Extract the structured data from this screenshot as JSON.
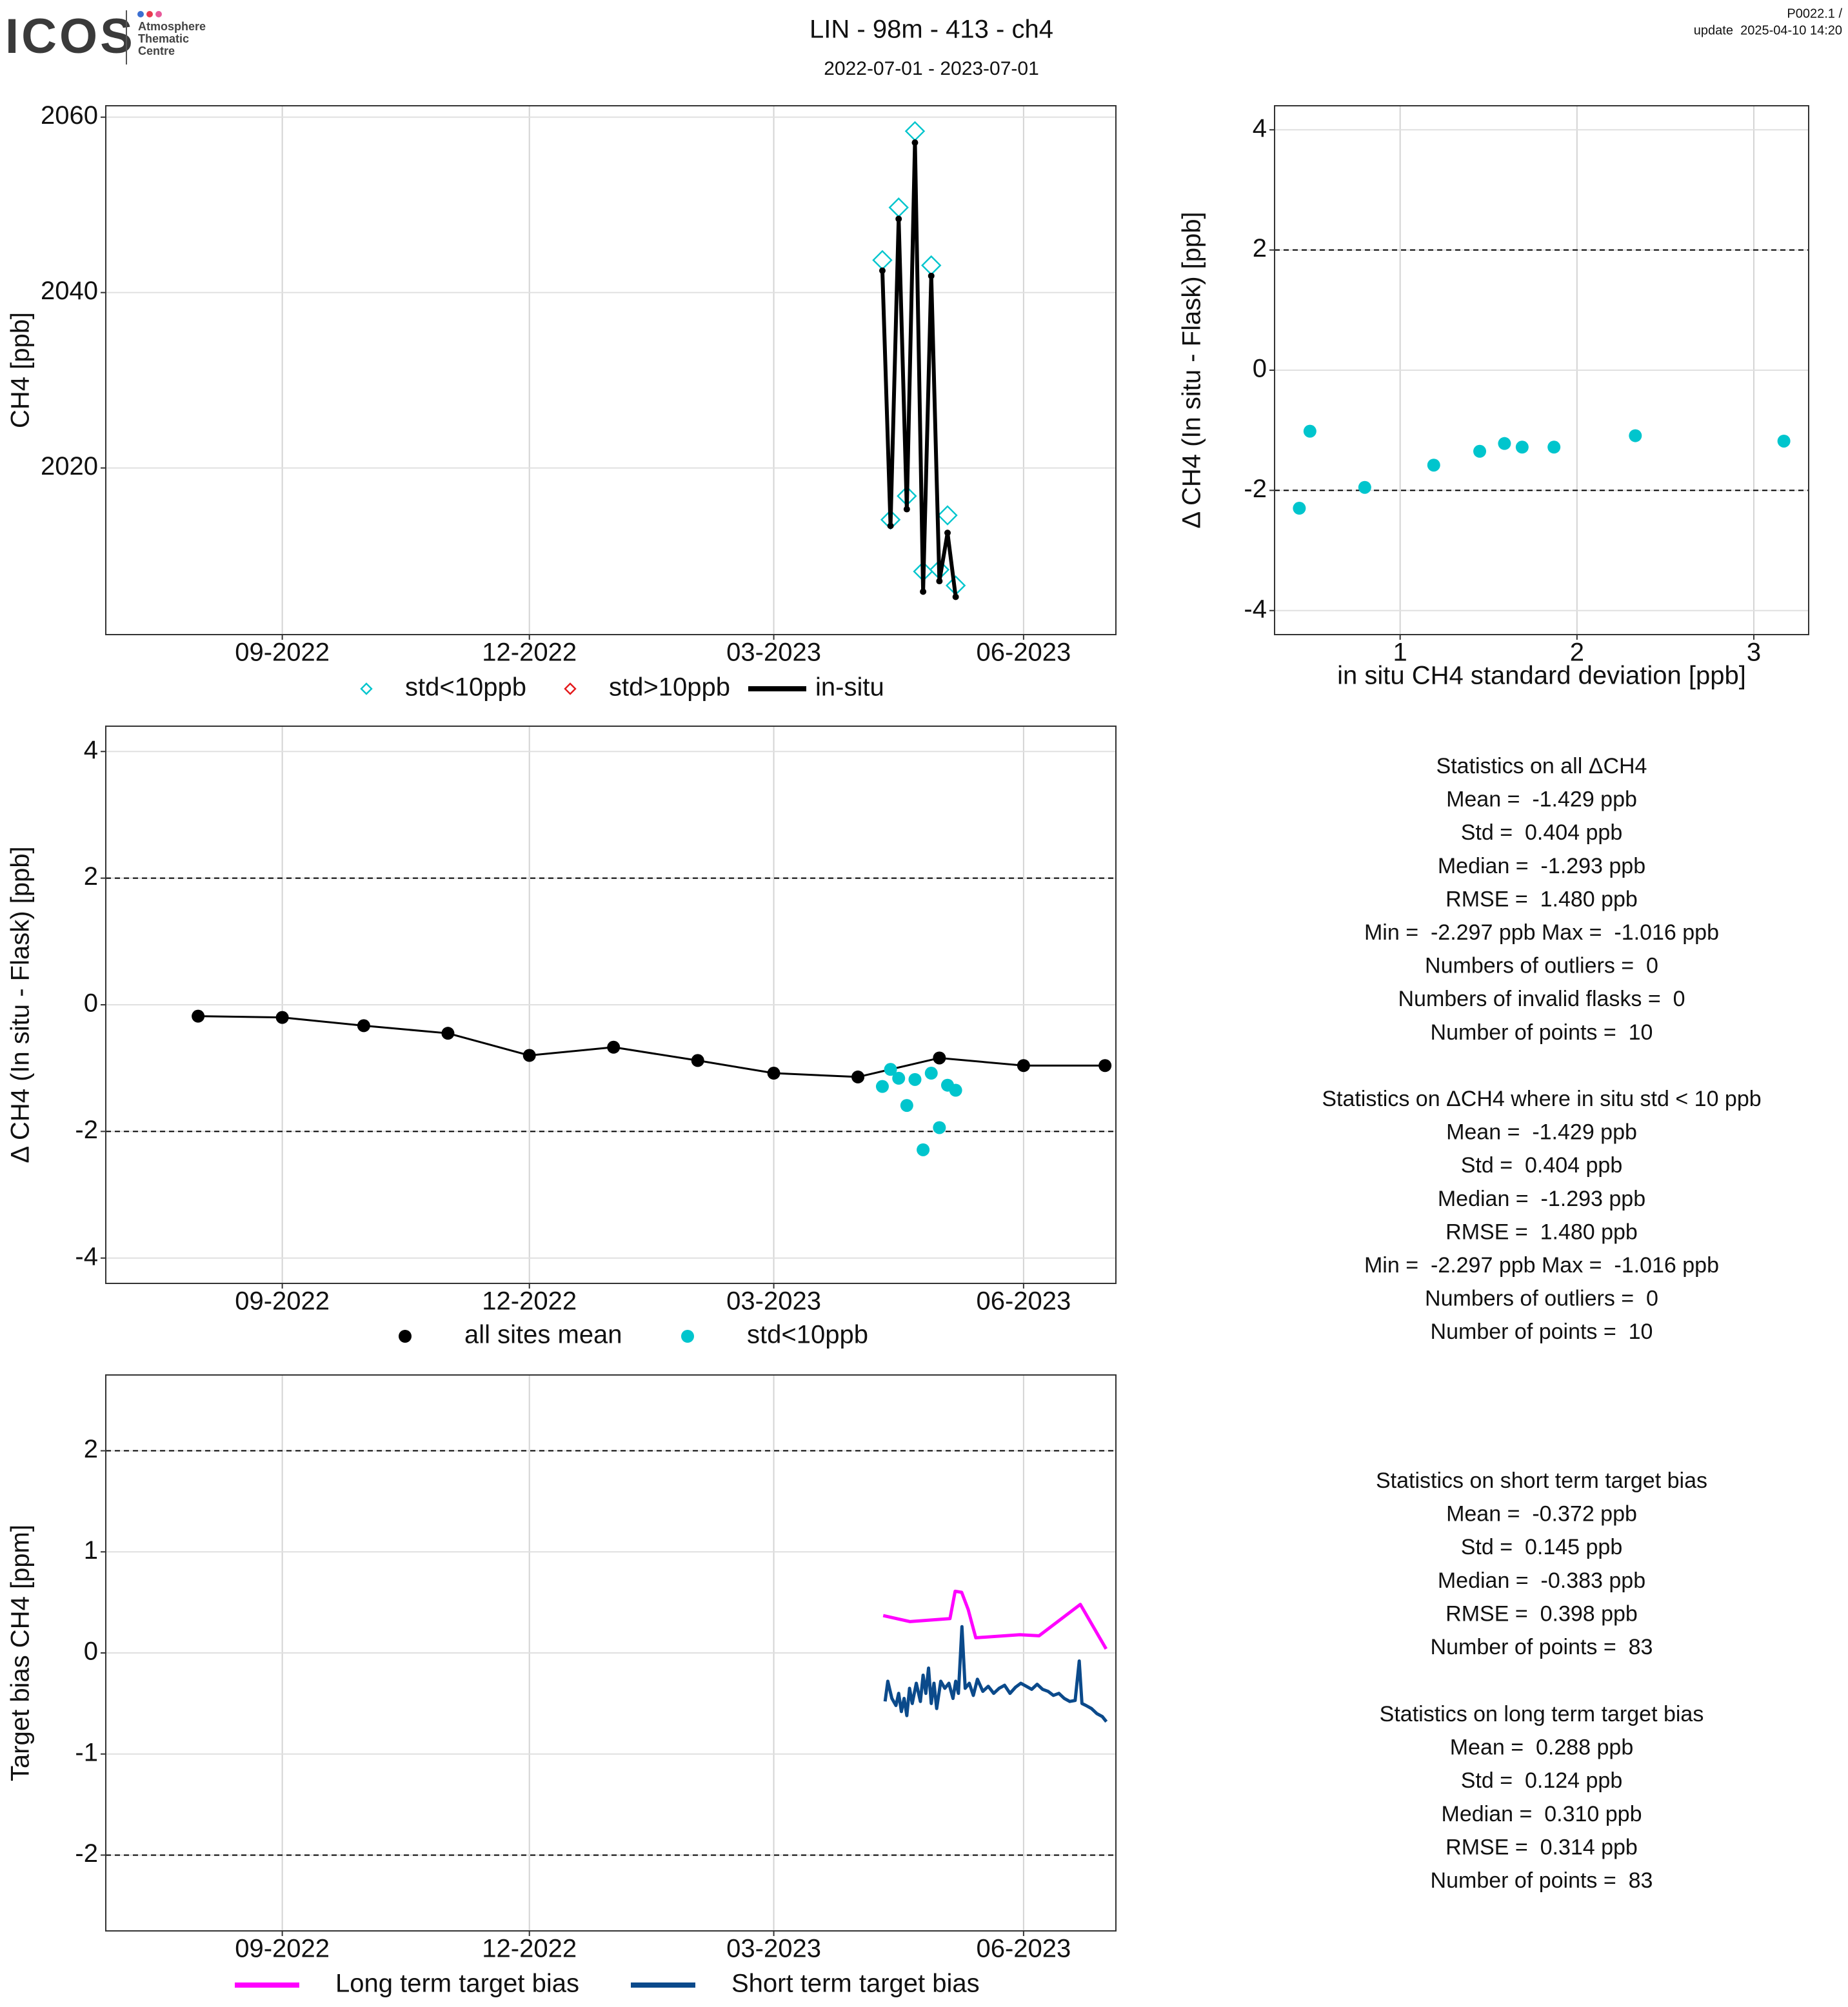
{
  "header": {
    "logo": "ICOS",
    "logo_subtitle": [
      "Atmosphere",
      "Thematic",
      "Centre"
    ],
    "title": "LIN - 98m - 413 - ch4",
    "subtitle": "2022-07-01 - 2023-07-01",
    "version": "P0022.1 /",
    "update": "update  2025-04-10 14:20"
  },
  "chart_data": [
    {
      "type": "line",
      "y_label": "CH4 [ppb]",
      "xlim": [
        -3,
        369
      ],
      "xticks": [
        {
          "value": 62,
          "label": "09-2022"
        },
        {
          "value": 153,
          "label": "12-2022"
        },
        {
          "value": 243,
          "label": "03-2023"
        },
        {
          "value": 335,
          "label": "06-2023"
        }
      ],
      "ylim": [
        2001,
        2061.3
      ],
      "yticks": [
        2020,
        2040,
        2060
      ],
      "grid": true,
      "series": [
        {
          "name": "std<10ppb",
          "color": "#00c5cd",
          "style": "diamond",
          "x": [
            283,
            286,
            289,
            292,
            295,
            298,
            301,
            304,
            307,
            310
          ],
          "values": [
            2043.7,
            2014.1,
            2049.7,
            2016.8,
            2058.4,
            2008.2,
            2043.1,
            2008.4,
            2014.6,
            2006.6
          ]
        },
        {
          "name": "std>10ppb",
          "color": "#e41a1c",
          "style": "diamond",
          "x": [],
          "values": []
        },
        {
          "name": "in-situ",
          "color": "#000000",
          "style": "line+point",
          "x": [
            283,
            286,
            289,
            292,
            295,
            298,
            301,
            304,
            307,
            310
          ],
          "values": [
            2042.5,
            2013.4,
            2048.4,
            2015.3,
            2057.1,
            2005.9,
            2041.9,
            2007.1,
            2012.6,
            2005.3
          ]
        }
      ]
    },
    {
      "type": "scatter",
      "x_label": "in situ CH4 standard deviation [ppb]",
      "y_label": "Δ CH4 (In situ - Flask) [ppb]",
      "xlim": [
        0.29,
        3.31
      ],
      "xticks": [
        1,
        2,
        3
      ],
      "ylim": [
        -4.4,
        4.4
      ],
      "yticks": [
        -4,
        -2,
        0,
        2,
        4
      ],
      "grid": true,
      "reference_lines": [
        2,
        -2
      ],
      "series": [
        {
          "color": "#00c5cd",
          "style": "point",
          "x": [
            0.43,
            0.49,
            0.8,
            1.19,
            1.45,
            1.59,
            1.69,
            1.87,
            2.33,
            3.17
          ],
          "values": [
            -2.297,
            -1.016,
            -1.95,
            -1.58,
            -1.35,
            -1.22,
            -1.28,
            -1.28,
            -1.09,
            -1.18
          ]
        }
      ]
    },
    {
      "type": "line",
      "y_label": "Δ CH4 (In situ - Flask) [ppb]",
      "xlim": [
        -3,
        369
      ],
      "xticks": [
        {
          "value": 62,
          "label": "09-2022"
        },
        {
          "value": 153,
          "label": "12-2022"
        },
        {
          "value": 243,
          "label": "03-2023"
        },
        {
          "value": 335,
          "label": "06-2023"
        }
      ],
      "ylim": [
        -4.4,
        4.4
      ],
      "yticks": [
        -4,
        -2,
        0,
        2,
        4
      ],
      "grid": true,
      "reference_lines": [
        2,
        -2
      ],
      "series": [
        {
          "name": "all sites mean",
          "color": "#000000",
          "style": "line+point",
          "x": [
            31,
            62,
            92,
            123,
            153,
            184,
            215,
            243,
            274,
            304,
            335,
            365
          ],
          "values": [
            -0.18,
            -0.2,
            -0.33,
            -0.45,
            -0.8,
            -0.67,
            -0.88,
            -1.08,
            -1.14,
            -0.84,
            -0.96,
            -0.96
          ]
        },
        {
          "name": "std<10ppb",
          "color": "#00c5cd",
          "style": "point",
          "x": [
            283,
            286,
            289,
            292,
            295,
            298,
            301,
            304,
            307,
            310
          ],
          "values": [
            -1.29,
            -1.02,
            -1.16,
            -1.59,
            -1.18,
            -2.29,
            -1.08,
            -1.94,
            -1.27,
            -1.35
          ]
        }
      ]
    },
    {
      "type": "line",
      "y_label": "Target bias CH4 [ppm]",
      "xlim": [
        -3,
        369
      ],
      "xticks": [
        {
          "value": 62,
          "label": "09-2022"
        },
        {
          "value": 153,
          "label": "12-2022"
        },
        {
          "value": 243,
          "label": "03-2023"
        },
        {
          "value": 335,
          "label": "06-2023"
        }
      ],
      "ylim": [
        -2.75,
        2.75
      ],
      "yticks": [
        -2,
        -1,
        0,
        1,
        2
      ],
      "grid": true,
      "reference_lines": [
        2,
        -2
      ],
      "series": [
        {
          "name": "Long term target bias",
          "color": "#ff00ff",
          "style": "line",
          "x": [
            283.3,
            293.2,
            307.9,
            309.8,
            312.2,
            314.6,
            317.4,
            333.6,
            340.7,
            355.9,
            365.4
          ],
          "values": [
            0.37,
            0.31,
            0.34,
            0.61,
            0.6,
            0.43,
            0.15,
            0.18,
            0.17,
            0.48,
            0.04
          ]
        },
        {
          "name": "Short term target bias",
          "color": "#0b4a8b",
          "style": "line",
          "x": [
            284,
            285,
            286.5,
            288,
            289,
            290,
            291,
            292,
            293,
            294,
            295.5,
            297,
            298,
            299,
            300,
            301,
            302,
            303,
            304.5,
            306,
            307.5,
            309,
            310,
            311,
            312.3,
            313.5,
            315,
            316.5,
            318,
            320,
            322,
            324,
            326,
            328,
            330,
            332,
            334,
            336,
            338,
            340,
            342,
            344,
            346,
            348,
            350,
            352,
            354,
            355.5,
            356.5,
            358,
            360,
            362,
            364,
            365.5
          ],
          "values": [
            -0.48,
            -0.28,
            -0.45,
            -0.52,
            -0.4,
            -0.58,
            -0.45,
            -0.62,
            -0.35,
            -0.5,
            -0.3,
            -0.48,
            -0.22,
            -0.4,
            -0.15,
            -0.5,
            -0.3,
            -0.55,
            -0.28,
            -0.35,
            -0.3,
            -0.45,
            -0.28,
            -0.4,
            0.26,
            -0.35,
            -0.3,
            -0.42,
            -0.26,
            -0.38,
            -0.33,
            -0.4,
            -0.35,
            -0.32,
            -0.4,
            -0.34,
            -0.3,
            -0.33,
            -0.36,
            -0.31,
            -0.36,
            -0.38,
            -0.42,
            -0.4,
            -0.45,
            -0.48,
            -0.47,
            -0.08,
            -0.5,
            -0.52,
            -0.55,
            -0.6,
            -0.63,
            -0.68
          ]
        }
      ]
    }
  ],
  "statistics": [
    {
      "lines": [
        "Statistics on all ΔCH4",
        "Mean =  -1.429 ppb",
        "Std =  0.404 ppb",
        "Median =  -1.293 ppb",
        "RMSE =  1.480 ppb",
        "Min =  -2.297 ppb Max =  -1.016 ppb",
        "Numbers of outliers =  0",
        "Numbers of invalid flasks =  0",
        "Number of points =  10"
      ]
    },
    {
      "lines": [
        "Statistics on ΔCH4 where in situ std < 10 ppb",
        "Mean =  -1.429 ppb",
        "Std =  0.404 ppb",
        "Median =  -1.293 ppb",
        "RMSE =  1.480 ppb",
        "Min =  -2.297 ppb Max =  -1.016 ppb",
        "Numbers of outliers =  0",
        "Number of points =  10"
      ]
    },
    {
      "lines": [
        "Statistics on short term target bias",
        "Mean =  -0.372 ppb",
        "Std =  0.145 ppb",
        "Median =  -0.383 ppb",
        "RMSE =  0.398 ppb",
        "Number of points =  83"
      ]
    },
    {
      "lines": [
        "Statistics on long term target bias",
        "Mean =  0.288 ppb",
        "Std =  0.124 ppb",
        "Median =  0.310 ppb",
        "RMSE =  0.314 ppb",
        "Number of points =  83"
      ]
    }
  ]
}
